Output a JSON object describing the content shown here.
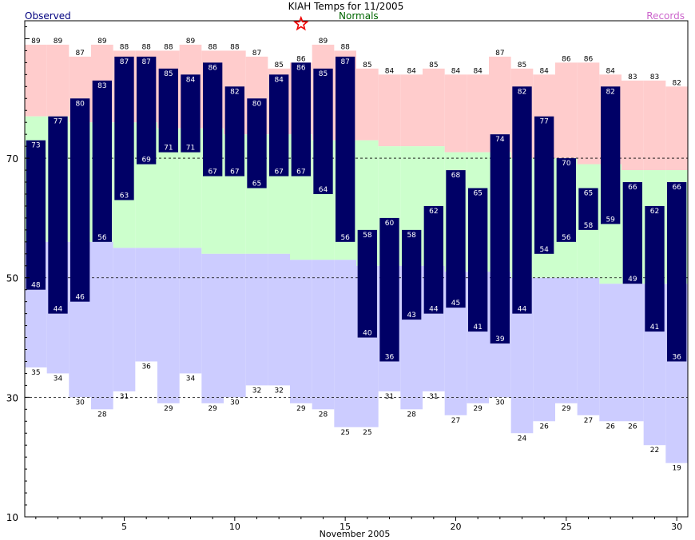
{
  "chart_data": {
    "type": "bar",
    "title": "KIAH Temps for 11/2005",
    "xlabel": "November 2005",
    "ylabel": "",
    "legend": [
      "Observed",
      "Normals",
      "Records"
    ],
    "legend_placement": "top",
    "ylim": [
      10,
      93
    ],
    "xlim": [
      0.5,
      30.5
    ],
    "y_gridlines": [
      30,
      50,
      70
    ],
    "x_ticks": [
      5,
      10,
      15,
      20,
      25,
      30
    ],
    "y_ticks": [
      10,
      30,
      50,
      70
    ],
    "days": [
      1,
      2,
      3,
      4,
      5,
      6,
      7,
      8,
      9,
      10,
      11,
      12,
      13,
      14,
      15,
      16,
      17,
      18,
      19,
      20,
      21,
      22,
      23,
      24,
      25,
      26,
      27,
      28,
      29,
      30
    ],
    "observed_high": [
      73,
      77,
      80,
      83,
      87,
      87,
      85,
      84,
      86,
      82,
      80,
      84,
      86,
      85,
      87,
      58,
      60,
      58,
      62,
      68,
      65,
      74,
      82,
      77,
      70,
      65,
      82,
      66,
      62,
      66
    ],
    "observed_low": [
      48,
      44,
      46,
      56,
      63,
      69,
      71,
      71,
      67,
      67,
      65,
      67,
      67,
      64,
      56,
      40,
      36,
      43,
      44,
      45,
      41,
      39,
      44,
      54,
      56,
      58,
      59,
      49,
      41,
      36
    ],
    "normal_high": [
      77,
      77,
      76,
      76,
      76,
      76,
      75,
      75,
      75,
      74,
      74,
      74,
      74,
      73,
      73,
      73,
      72,
      72,
      72,
      71,
      71,
      71,
      70,
      70,
      70,
      69,
      69,
      68,
      68,
      68
    ],
    "normal_low": [
      56,
      56,
      56,
      56,
      55,
      55,
      55,
      55,
      54,
      54,
      54,
      54,
      53,
      53,
      53,
      52,
      52,
      52,
      52,
      51,
      51,
      51,
      50,
      50,
      50,
      50,
      49,
      49,
      49,
      49
    ],
    "record_high": [
      89,
      89,
      87,
      89,
      88,
      88,
      88,
      89,
      88,
      88,
      87,
      85,
      86,
      89,
      88,
      85,
      84,
      84,
      85,
      84,
      84,
      87,
      85,
      84,
      86,
      86,
      84,
      83,
      83,
      82
    ],
    "record_low": [
      35,
      34,
      30,
      28,
      31,
      36,
      29,
      34,
      29,
      30,
      32,
      32,
      29,
      28,
      25,
      25,
      31,
      28,
      31,
      27,
      29,
      30,
      24,
      26,
      29,
      27,
      26,
      26,
      22,
      19
    ],
    "record_marker_day": 13,
    "colors": {
      "observed": "#000066",
      "record_high_band": "#ffcccc",
      "normal_band": "#ccffcc",
      "record_low_band": "#ccccff",
      "observed_label": "#00007f",
      "normals_label": "#006600",
      "records_label": "#cc66cc",
      "marker": "#ee0000"
    }
  }
}
